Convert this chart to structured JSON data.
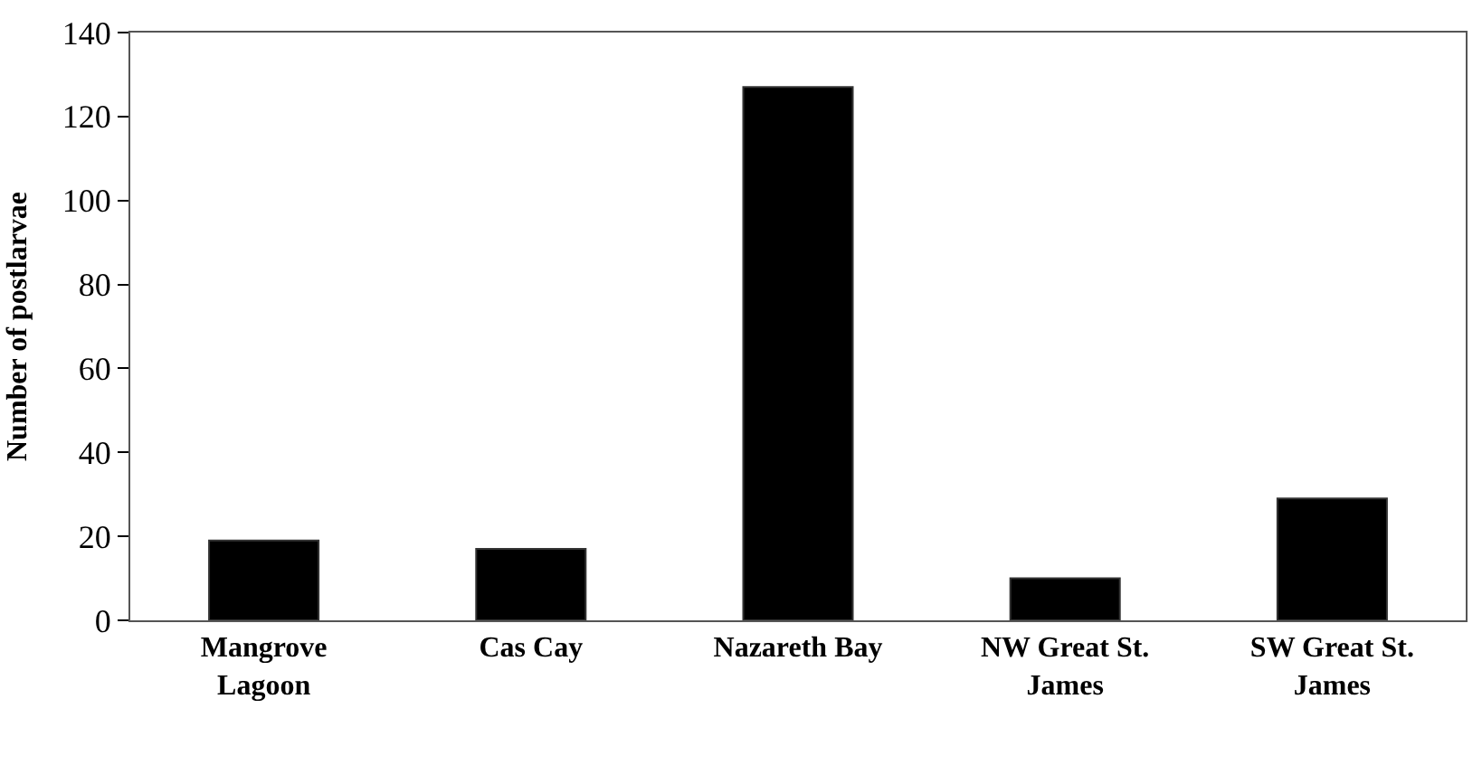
{
  "chart_data": {
    "type": "bar",
    "ylabel": "Number of postlarvae",
    "categories": [
      "Mangrove\nLagoon",
      "Cas Cay",
      "Nazareth Bay",
      "NW Great St.\nJames",
      "SW Great St.\nJames"
    ],
    "values": [
      19,
      17,
      127,
      10,
      29
    ],
    "color": "#000000",
    "ylim": [
      0,
      140
    ],
    "yticks": [
      0,
      20,
      40,
      60,
      80,
      100,
      120,
      140
    ],
    "legend": false
  }
}
